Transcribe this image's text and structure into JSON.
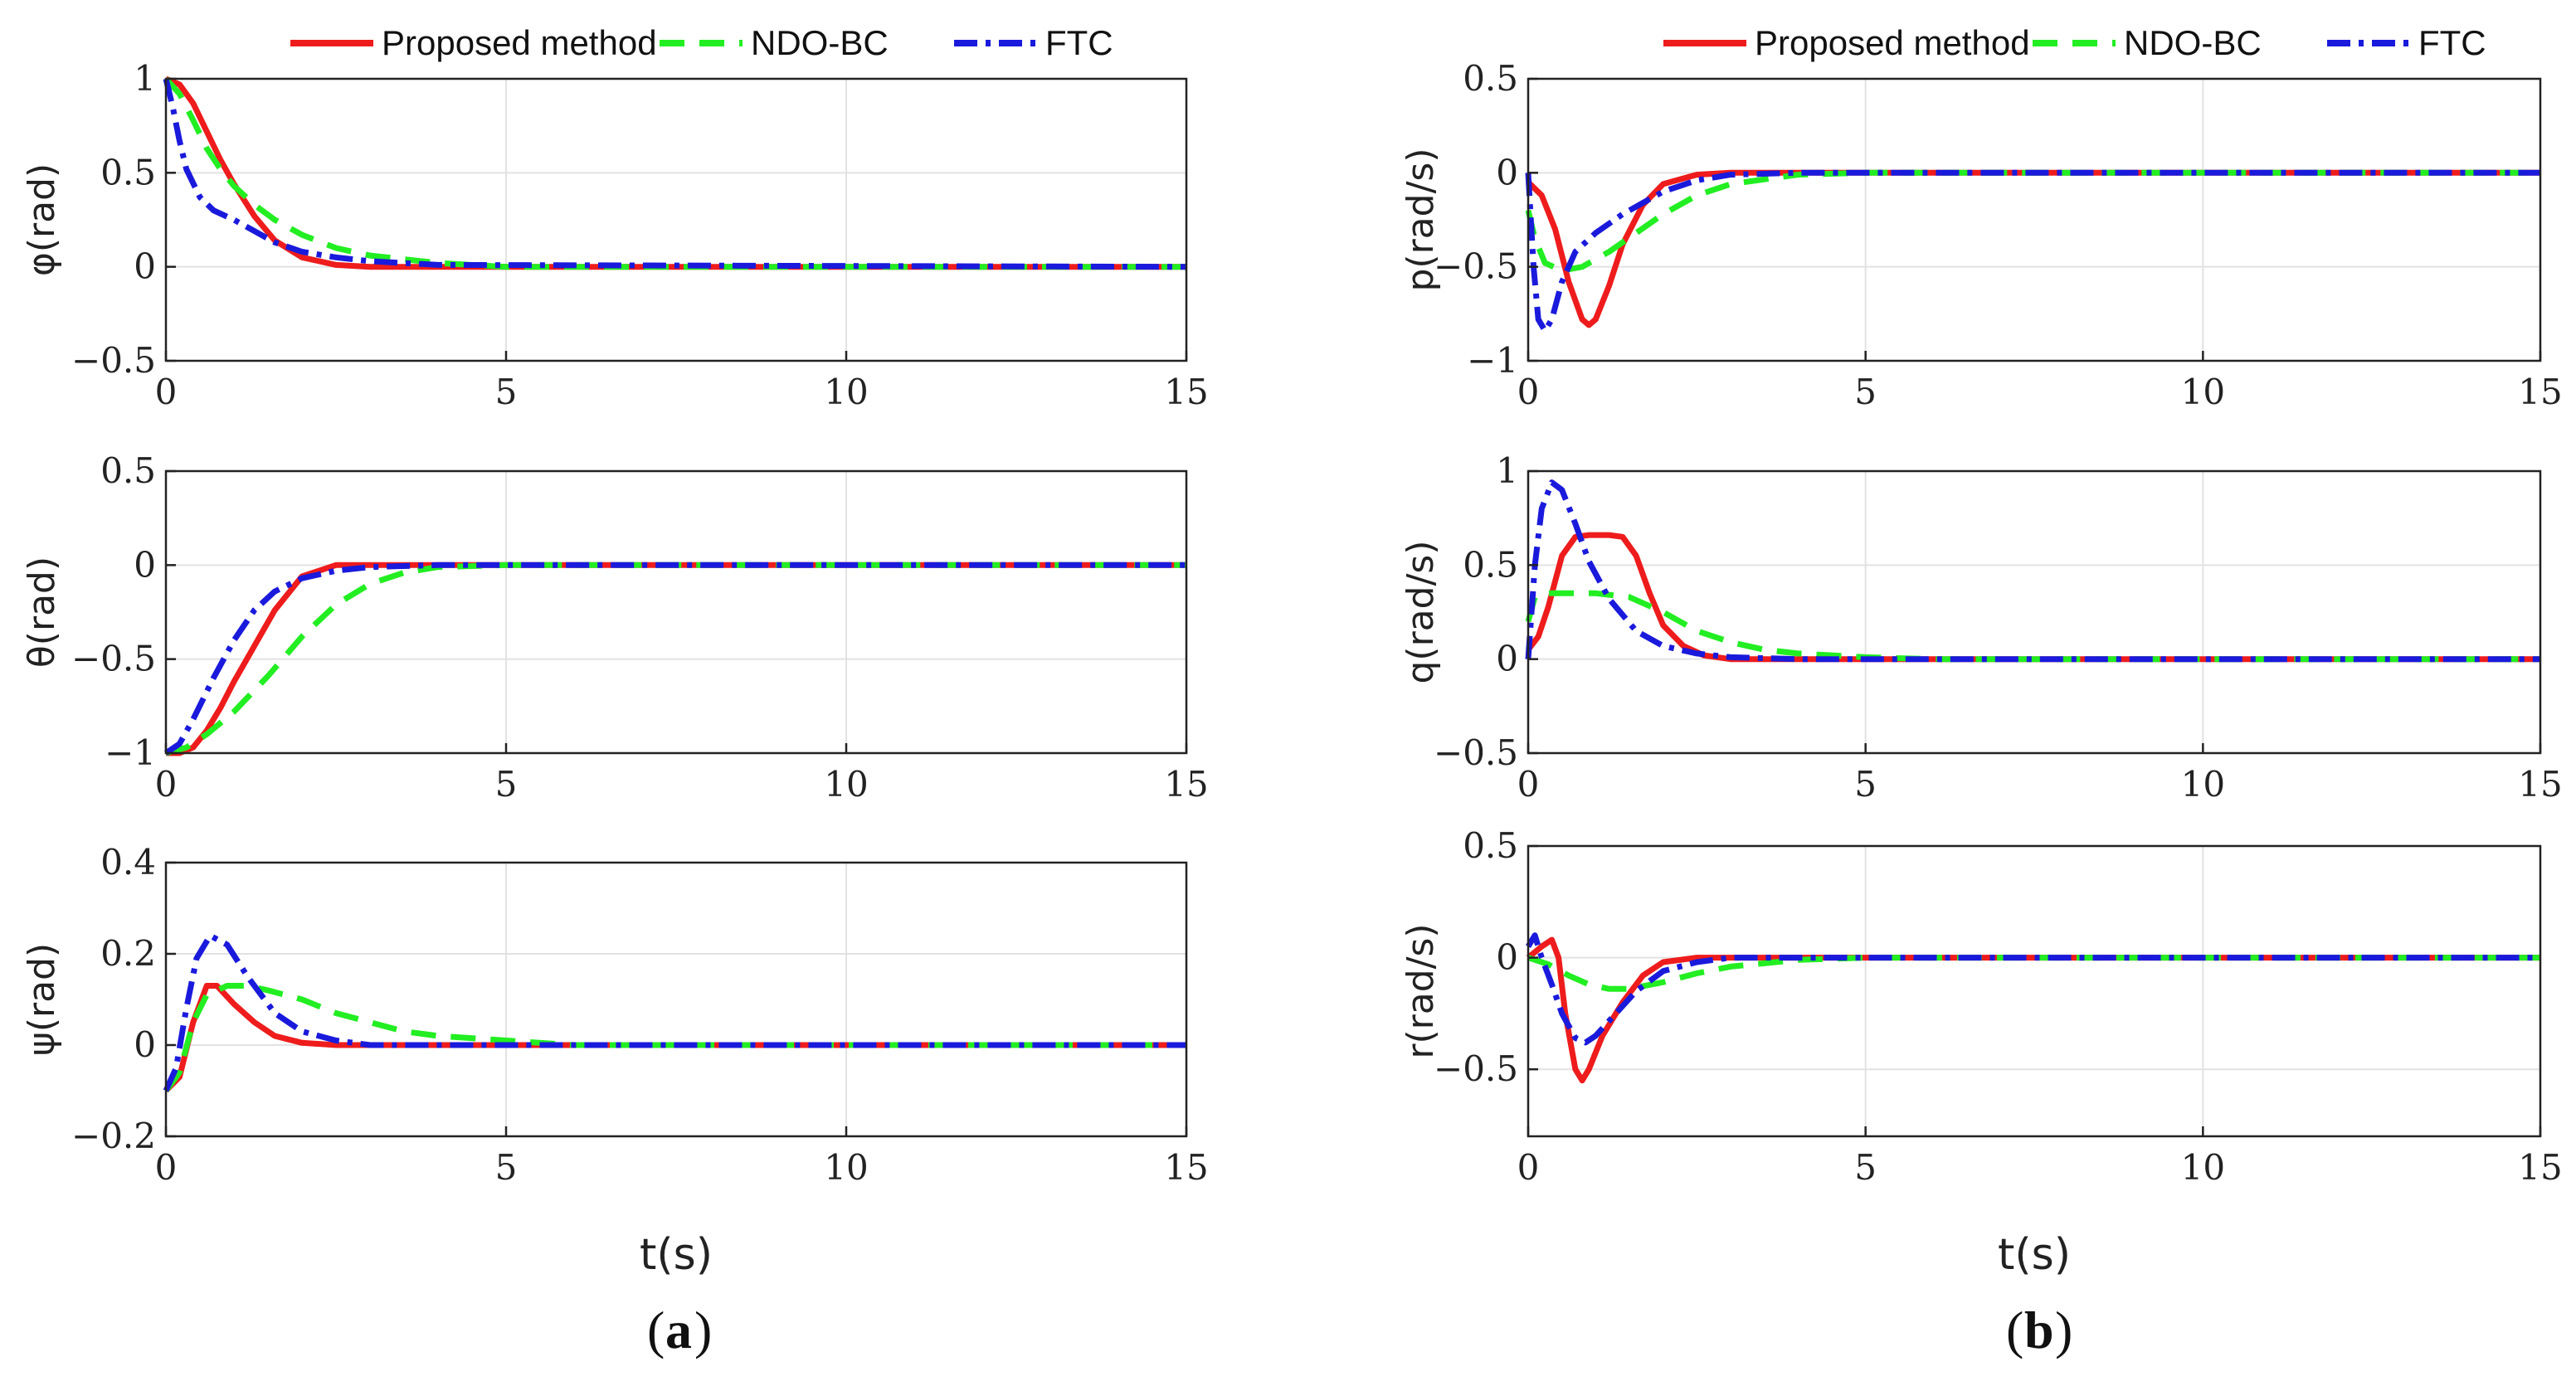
{
  "legend": {
    "series_names": [
      "Proposed method",
      "NDO-BC",
      "FTC"
    ]
  },
  "colors": {
    "proposed": "#ee1c1c",
    "ndo": "#22ee22",
    "ftc": "#1a1adc"
  },
  "panels": [
    {
      "caption_letter": "a",
      "xlabel": "t(s)"
    },
    {
      "caption_letter": "b",
      "xlabel": "t(s)"
    }
  ],
  "chart_data": [
    {
      "type": "line",
      "panel": "a",
      "ylabel": "φ(rad)",
      "xlim": [
        0,
        15
      ],
      "ylim": [
        -0.5,
        1
      ],
      "xticks": [
        0,
        5,
        10,
        15
      ],
      "yticks": [
        -0.5,
        0,
        0.5,
        1
      ],
      "xtick_labels": [
        "0",
        "5",
        "10",
        "15"
      ],
      "ytick_labels": [
        "−0.5",
        "0",
        "0.5",
        "1"
      ],
      "series": [
        {
          "name": "Proposed method",
          "x": [
            0,
            0.2,
            0.4,
            0.6,
            0.8,
            1.0,
            1.3,
            1.6,
            2.0,
            2.5,
            3,
            4,
            15
          ],
          "y": [
            1.0,
            0.97,
            0.87,
            0.72,
            0.57,
            0.44,
            0.27,
            0.14,
            0.05,
            0.01,
            0.0,
            0.0,
            0.0
          ]
        },
        {
          "name": "NDO-BC",
          "x": [
            0,
            0.2,
            0.4,
            0.6,
            0.8,
            1.0,
            1.3,
            1.6,
            2.0,
            2.5,
            3,
            4,
            5,
            15
          ],
          "y": [
            1.0,
            0.92,
            0.78,
            0.63,
            0.52,
            0.43,
            0.33,
            0.25,
            0.17,
            0.1,
            0.06,
            0.02,
            0.0,
            0.0
          ]
        },
        {
          "name": "FTC",
          "x": [
            0,
            0.1,
            0.2,
            0.3,
            0.5,
            0.7,
            1.0,
            1.3,
            1.6,
            2.0,
            2.5,
            3,
            4,
            15
          ],
          "y": [
            1.0,
            0.85,
            0.67,
            0.52,
            0.37,
            0.3,
            0.25,
            0.19,
            0.13,
            0.08,
            0.05,
            0.03,
            0.01,
            0.0
          ]
        }
      ]
    },
    {
      "type": "line",
      "panel": "a",
      "ylabel": "θ(rad)",
      "xlim": [
        0,
        15
      ],
      "ylim": [
        -1,
        0.5
      ],
      "xticks": [
        0,
        5,
        10,
        15
      ],
      "yticks": [
        -1,
        -0.5,
        0,
        0.5
      ],
      "xtick_labels": [
        "0",
        "5",
        "10",
        "15"
      ],
      "ytick_labels": [
        "−1",
        "−0.5",
        "0",
        "0.5"
      ],
      "series": [
        {
          "name": "Proposed method",
          "x": [
            0,
            0.2,
            0.4,
            0.6,
            0.8,
            1.0,
            1.3,
            1.6,
            2.0,
            2.5,
            3,
            15
          ],
          "y": [
            -1.0,
            -1.0,
            -0.97,
            -0.88,
            -0.76,
            -0.62,
            -0.43,
            -0.24,
            -0.06,
            0.0,
            0.0,
            0.0
          ]
        },
        {
          "name": "NDO-BC",
          "x": [
            0,
            0.3,
            0.6,
            1.0,
            1.5,
            2.0,
            2.5,
            3.0,
            3.5,
            4.0,
            5,
            15
          ],
          "y": [
            -1.0,
            -0.97,
            -0.9,
            -0.78,
            -0.59,
            -0.38,
            -0.21,
            -0.1,
            -0.04,
            -0.01,
            0.0,
            0.0
          ]
        },
        {
          "name": "FTC",
          "x": [
            0,
            0.2,
            0.4,
            0.7,
            1.0,
            1.3,
            1.6,
            2.0,
            2.5,
            3,
            4,
            15
          ],
          "y": [
            -1.0,
            -0.95,
            -0.82,
            -0.6,
            -0.4,
            -0.24,
            -0.14,
            -0.07,
            -0.03,
            -0.01,
            0.0,
            0.0
          ]
        }
      ]
    },
    {
      "type": "line",
      "panel": "a",
      "ylabel": "ψ(rad)",
      "xlim": [
        0,
        15
      ],
      "ylim": [
        -0.2,
        0.4
      ],
      "xticks": [
        0,
        5,
        10,
        15
      ],
      "yticks": [
        -0.2,
        0,
        0.2,
        0.4
      ],
      "xtick_labels": [
        "0",
        "5",
        "10",
        "15"
      ],
      "ytick_labels": [
        "−0.2",
        "0",
        "0.2",
        "0.4"
      ],
      "series": [
        {
          "name": "Proposed method",
          "x": [
            0,
            0.2,
            0.4,
            0.6,
            0.75,
            1.0,
            1.3,
            1.6,
            2.0,
            2.5,
            15
          ],
          "y": [
            -0.1,
            -0.07,
            0.05,
            0.13,
            0.13,
            0.09,
            0.05,
            0.02,
            0.005,
            0.0,
            0.0
          ]
        },
        {
          "name": "NDO-BC",
          "x": [
            0,
            0.2,
            0.4,
            0.6,
            0.9,
            1.2,
            1.5,
            2.0,
            2.5,
            3.0,
            3.5,
            4.0,
            5.0,
            6,
            15
          ],
          "y": [
            -0.1,
            -0.06,
            0.05,
            0.11,
            0.13,
            0.13,
            0.12,
            0.1,
            0.07,
            0.05,
            0.03,
            0.02,
            0.01,
            0.0,
            0.0
          ]
        },
        {
          "name": "FTC",
          "x": [
            0,
            0.15,
            0.3,
            0.45,
            0.65,
            0.9,
            1.2,
            1.6,
            2.0,
            2.5,
            3.0,
            4,
            15
          ],
          "y": [
            -0.1,
            -0.05,
            0.08,
            0.19,
            0.24,
            0.22,
            0.15,
            0.07,
            0.03,
            0.01,
            0.0,
            0.0,
            0.0
          ]
        }
      ]
    },
    {
      "type": "line",
      "panel": "b",
      "ylabel": "p(rad/s)",
      "xlim": [
        0,
        15
      ],
      "ylim": [
        -1,
        0.5
      ],
      "xticks": [
        0,
        5,
        10,
        15
      ],
      "yticks": [
        -1,
        -0.5,
        0,
        0.5
      ],
      "xtick_labels": [
        "0",
        "5",
        "10",
        "15"
      ],
      "ytick_labels": [
        "−1",
        "−0.5",
        "0",
        "0.5"
      ],
      "series": [
        {
          "name": "Proposed method",
          "x": [
            0,
            0.2,
            0.4,
            0.6,
            0.8,
            0.9,
            1.0,
            1.2,
            1.4,
            1.7,
            2.0,
            2.5,
            3,
            4,
            15
          ],
          "y": [
            -0.05,
            -0.12,
            -0.3,
            -0.58,
            -0.78,
            -0.81,
            -0.78,
            -0.6,
            -0.38,
            -0.17,
            -0.06,
            -0.01,
            0.0,
            0.0,
            0.0
          ]
        },
        {
          "name": "NDO-BC",
          "x": [
            0,
            0.1,
            0.25,
            0.5,
            0.8,
            1.2,
            1.6,
            2.0,
            2.5,
            3.0,
            4.0,
            5,
            15
          ],
          "y": [
            -0.2,
            -0.35,
            -0.48,
            -0.52,
            -0.5,
            -0.42,
            -0.32,
            -0.22,
            -0.12,
            -0.06,
            -0.01,
            0.0,
            0.0
          ]
        },
        {
          "name": "FTC",
          "x": [
            0,
            0.08,
            0.15,
            0.25,
            0.35,
            0.5,
            0.7,
            1.0,
            1.4,
            2.0,
            2.5,
            3.0,
            4,
            15
          ],
          "y": [
            0.0,
            -0.5,
            -0.78,
            -0.84,
            -0.78,
            -0.58,
            -0.42,
            -0.32,
            -0.22,
            -0.1,
            -0.04,
            -0.01,
            0.0,
            0.0
          ]
        }
      ]
    },
    {
      "type": "line",
      "panel": "b",
      "ylabel": "q(rad/s)",
      "xlim": [
        0,
        15
      ],
      "ylim": [
        -0.5,
        1
      ],
      "xticks": [
        0,
        5,
        10,
        15
      ],
      "yticks": [
        -0.5,
        0,
        0.5,
        1
      ],
      "xtick_labels": [
        "0",
        "5",
        "10",
        "15"
      ],
      "ytick_labels": [
        "−0.5",
        "0",
        "0.5",
        "1"
      ],
      "series": [
        {
          "name": "Proposed method",
          "x": [
            0,
            0.15,
            0.3,
            0.5,
            0.7,
            0.9,
            1.2,
            1.4,
            1.6,
            1.8,
            2.0,
            2.3,
            2.6,
            3.0,
            15
          ],
          "y": [
            0.05,
            0.12,
            0.28,
            0.55,
            0.65,
            0.66,
            0.66,
            0.65,
            0.55,
            0.35,
            0.18,
            0.07,
            0.02,
            0.0,
            0.0
          ]
        },
        {
          "name": "NDO-BC",
          "x": [
            0,
            0.1,
            0.3,
            0.5,
            1.0,
            1.5,
            2.0,
            2.5,
            3.0,
            3.5,
            4.0,
            5.0,
            6,
            15
          ],
          "y": [
            0.2,
            0.33,
            0.35,
            0.35,
            0.35,
            0.33,
            0.25,
            0.15,
            0.09,
            0.05,
            0.03,
            0.01,
            0.0,
            0.0
          ]
        },
        {
          "name": "FTC",
          "x": [
            0,
            0.1,
            0.2,
            0.35,
            0.5,
            0.7,
            0.9,
            1.2,
            1.6,
            2.0,
            2.5,
            3.0,
            4,
            15
          ],
          "y": [
            0.0,
            0.5,
            0.8,
            0.94,
            0.9,
            0.72,
            0.52,
            0.32,
            0.15,
            0.07,
            0.03,
            0.01,
            0.0,
            0.0
          ]
        }
      ]
    },
    {
      "type": "line",
      "panel": "b",
      "ylabel": "r(rad/s)",
      "xlim": [
        0,
        15
      ],
      "ylim": [
        -0.8,
        0.5
      ],
      "xticks": [
        0,
        5,
        10,
        15
      ],
      "yticks": [
        -0.5,
        0,
        0.5
      ],
      "xtick_labels": [
        "0",
        "5",
        "10",
        "15"
      ],
      "ytick_labels": [
        "−0.5",
        "0",
        "0.5"
      ],
      "series": [
        {
          "name": "Proposed method",
          "x": [
            0,
            0.2,
            0.35,
            0.45,
            0.55,
            0.7,
            0.8,
            0.9,
            1.1,
            1.4,
            1.7,
            2.0,
            2.5,
            3,
            15
          ],
          "y": [
            0.0,
            0.05,
            0.08,
            0.0,
            -0.25,
            -0.5,
            -0.55,
            -0.5,
            -0.35,
            -0.2,
            -0.08,
            -0.02,
            0.0,
            0.0,
            0.0
          ]
        },
        {
          "name": "NDO-BC",
          "x": [
            0,
            0.3,
            0.6,
            0.9,
            1.2,
            1.5,
            2.0,
            2.5,
            3.0,
            4.0,
            5,
            15
          ],
          "y": [
            0.0,
            -0.03,
            -0.08,
            -0.12,
            -0.14,
            -0.14,
            -0.11,
            -0.07,
            -0.04,
            -0.01,
            0.0,
            0.0
          ]
        },
        {
          "name": "FTC",
          "x": [
            0,
            0.1,
            0.2,
            0.35,
            0.5,
            0.7,
            0.85,
            1.0,
            1.3,
            1.6,
            2.0,
            2.5,
            3.0,
            4,
            15
          ],
          "y": [
            0.05,
            0.1,
            0.0,
            -0.12,
            -0.25,
            -0.36,
            -0.38,
            -0.35,
            -0.25,
            -0.15,
            -0.06,
            -0.02,
            0.0,
            0.0,
            0.0
          ]
        }
      ]
    }
  ]
}
